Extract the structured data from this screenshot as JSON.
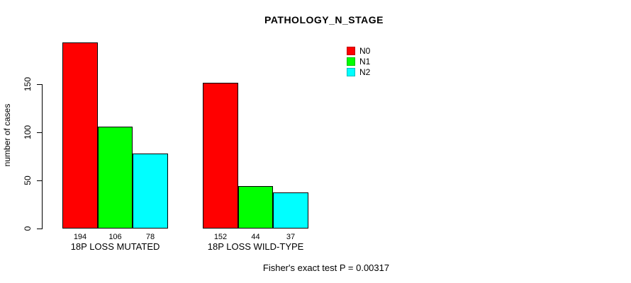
{
  "title": "PATHOLOGY_N_STAGE",
  "footer": "Fisher's exact test P = 0.00317",
  "chart_data": {
    "type": "bar",
    "title": "PATHOLOGY_N_STAGE",
    "xlabel": "",
    "ylabel": "number of cases",
    "yticks": [
      0,
      50,
      100,
      150
    ],
    "ylim": [
      0,
      196
    ],
    "grid": false,
    "legend_position": "top-right",
    "bar_value_labels": true,
    "categories": [
      "18P LOSS MUTATED",
      "18P LOSS WILD-TYPE"
    ],
    "series": [
      {
        "name": "N0",
        "color": "#FF0000",
        "values": [
          194,
          152
        ]
      },
      {
        "name": "N1",
        "color": "#00FF00",
        "values": [
          106,
          44
        ]
      },
      {
        "name": "N2",
        "color": "#00FFFF",
        "values": [
          78,
          37
        ]
      }
    ],
    "annotation": "Fisher's exact test P = 0.00317"
  }
}
